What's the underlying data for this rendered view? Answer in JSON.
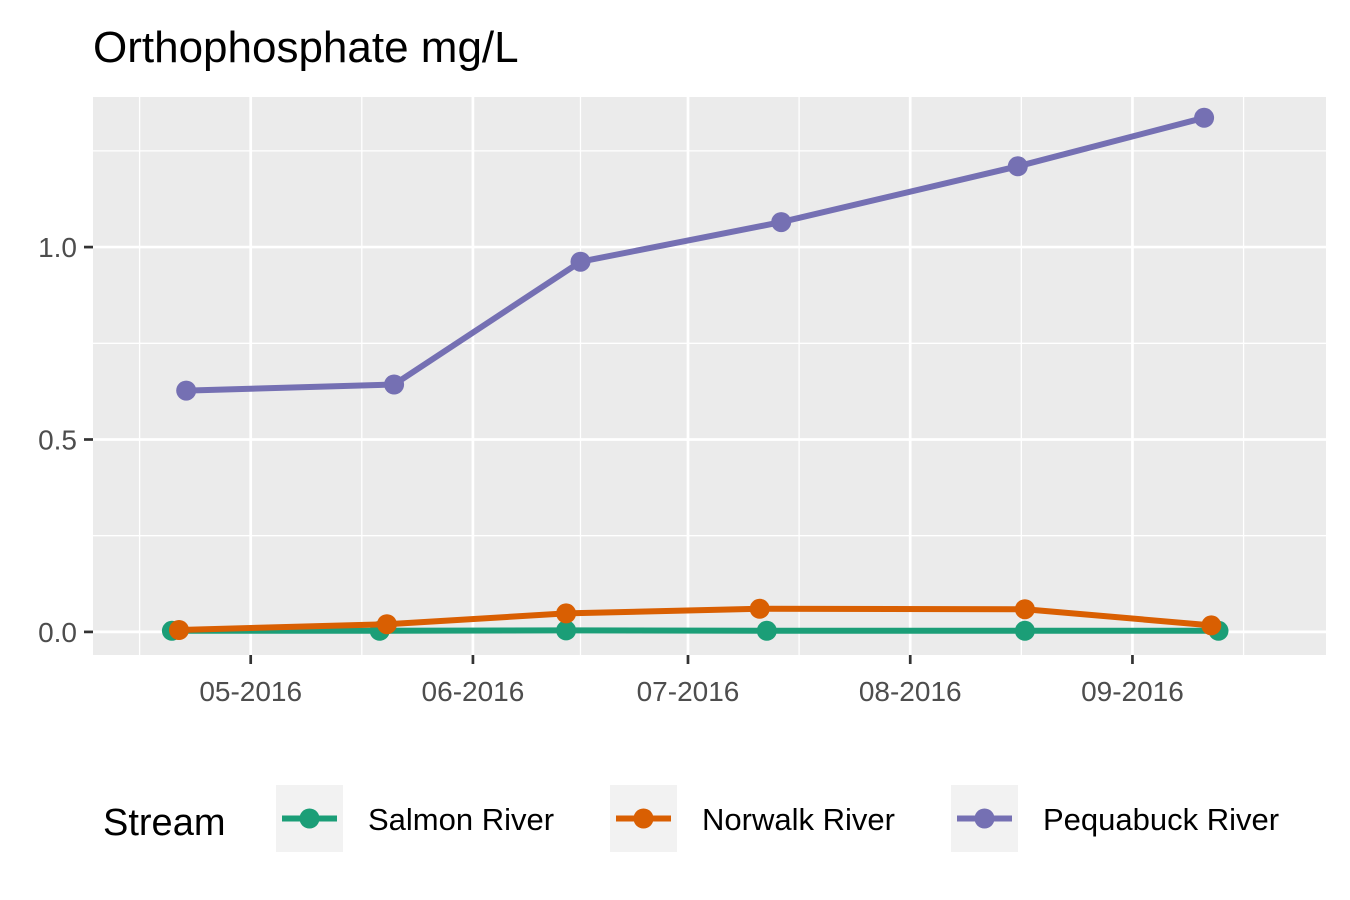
{
  "chart_data": {
    "type": "line",
    "title": "Orthophosphate mg/L",
    "xlabel": "",
    "ylabel": "",
    "x_tick_labels": [
      "05-2016",
      "06-2016",
      "07-2016",
      "08-2016",
      "09-2016"
    ],
    "x_tick_dates": [
      "2016-05-01",
      "2016-06-01",
      "2016-07-01",
      "2016-08-01",
      "2016-09-01"
    ],
    "xlim": [
      "2016-04-09",
      "2016-09-28"
    ],
    "y_ticks": [
      0.0,
      0.5,
      1.0
    ],
    "y_tick_labels": [
      "0.0",
      "0.5",
      "1.0"
    ],
    "ylim": [
      -0.06,
      1.39
    ],
    "grid": true,
    "legend": {
      "title": "Stream",
      "position": "bottom"
    },
    "series": [
      {
        "name": "Salmon River",
        "color": "#1b9e77",
        "points": [
          {
            "x": "2016-04-20",
            "y": 0.003
          },
          {
            "x": "2016-05-19",
            "y": 0.003
          },
          {
            "x": "2016-06-14",
            "y": 0.004
          },
          {
            "x": "2016-07-12",
            "y": 0.003
          },
          {
            "x": "2016-08-17",
            "y": 0.003
          },
          {
            "x": "2016-09-13",
            "y": 0.003
          }
        ]
      },
      {
        "name": "Norwalk River",
        "color": "#d95f02",
        "points": [
          {
            "x": "2016-04-21",
            "y": 0.005
          },
          {
            "x": "2016-05-20",
            "y": 0.02
          },
          {
            "x": "2016-06-14",
            "y": 0.048
          },
          {
            "x": "2016-07-11",
            "y": 0.06
          },
          {
            "x": "2016-08-17",
            "y": 0.059
          },
          {
            "x": "2016-09-12",
            "y": 0.017
          }
        ]
      },
      {
        "name": "Pequabuck River",
        "color": "#7570b3",
        "points": [
          {
            "x": "2016-04-22",
            "y": 0.627
          },
          {
            "x": "2016-05-21",
            "y": 0.643
          },
          {
            "x": "2016-06-16",
            "y": 0.962
          },
          {
            "x": "2016-07-14",
            "y": 1.065
          },
          {
            "x": "2016-08-16",
            "y": 1.21
          },
          {
            "x": "2016-09-11",
            "y": 1.336
          }
        ]
      }
    ]
  }
}
